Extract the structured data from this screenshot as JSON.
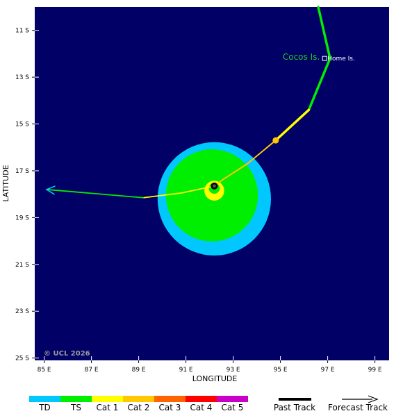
{
  "map": {
    "xlabel": "LONGITUDE",
    "ylabel": "LATITUDE",
    "lon_range": [
      84.6,
      99.6
    ],
    "lat_range": [
      10.0,
      25.1
    ],
    "x_ticks": [
      "85 E",
      "87 E",
      "89 E",
      "91 E",
      "93 E",
      "95 E",
      "97 E",
      "99 E"
    ],
    "x_tick_values": [
      85,
      87,
      89,
      91,
      93,
      95,
      97,
      99
    ],
    "y_ticks": [
      "11 S",
      "13 S",
      "15 S",
      "17 S",
      "19 S",
      "21 S",
      "23 S",
      "25 S"
    ],
    "y_tick_values": [
      11,
      13,
      15,
      17,
      19,
      21,
      23,
      25
    ],
    "ocean_color": "#000066",
    "copyright": "© UCL 2026"
  },
  "places": [
    {
      "name": "Cocos Is.",
      "lon": 96.9,
      "lat": 12.2,
      "color": "#22cc22"
    },
    {
      "name": "Home Is.",
      "lon": 96.9,
      "lat": 12.2,
      "color": "#ffffff"
    }
  ],
  "storm": {
    "center": {
      "lon": 92.2,
      "lat": 17.65
    },
    "wind_field": {
      "td_center": {
        "lon": 92.2,
        "lat": 18.2
      },
      "td_radius_deg": 2.4,
      "ts_center": {
        "lon": 92.1,
        "lat": 18.05
      },
      "ts_radius_deg": 1.95,
      "cat1_center": {
        "lon": 92.2,
        "lat": 17.85
      },
      "cat1_radius_deg": 0.42
    },
    "past_track": [
      {
        "lon": 96.6,
        "lat": 10.0,
        "cat": "TS"
      },
      {
        "lon": 97.1,
        "lat": 12.2,
        "cat": "TS"
      },
      {
        "lon": 96.2,
        "lat": 14.4,
        "cat": "TS"
      },
      {
        "lon": 94.8,
        "lat": 15.7,
        "cat": "Cat 1"
      },
      {
        "lon": 93.6,
        "lat": 16.7,
        "cat": "Cat 2"
      },
      {
        "lon": 92.6,
        "lat": 17.35,
        "cat": "Cat 2"
      },
      {
        "lon": 92.2,
        "lat": 17.65,
        "cat": "Cat 2"
      }
    ],
    "forecast_track": [
      {
        "lon": 92.2,
        "lat": 17.65,
        "cat": "Cat 1"
      },
      {
        "lon": 90.8,
        "lat": 17.95,
        "cat": "Cat 1"
      },
      {
        "lon": 89.2,
        "lat": 18.15,
        "cat": "TS"
      },
      {
        "lon": 85.1,
        "lat": 17.8,
        "cat": "TD"
      }
    ],
    "past_marker": {
      "lon": 94.8,
      "lat": 15.7
    }
  },
  "legend": {
    "categories": [
      {
        "label": "TD",
        "color": "#00c8ff"
      },
      {
        "label": "TS",
        "color": "#00ee00"
      },
      {
        "label": "Cat 1",
        "color": "#ffff00"
      },
      {
        "label": "Cat 2",
        "color": "#ffc800"
      },
      {
        "label": "Cat 3",
        "color": "#ff6400"
      },
      {
        "label": "Cat 4",
        "color": "#ff0000"
      },
      {
        "label": "Cat 5",
        "color": "#c800c8"
      }
    ],
    "past_track_label": "Past Track",
    "forecast_track_label": "Forecast Track"
  }
}
